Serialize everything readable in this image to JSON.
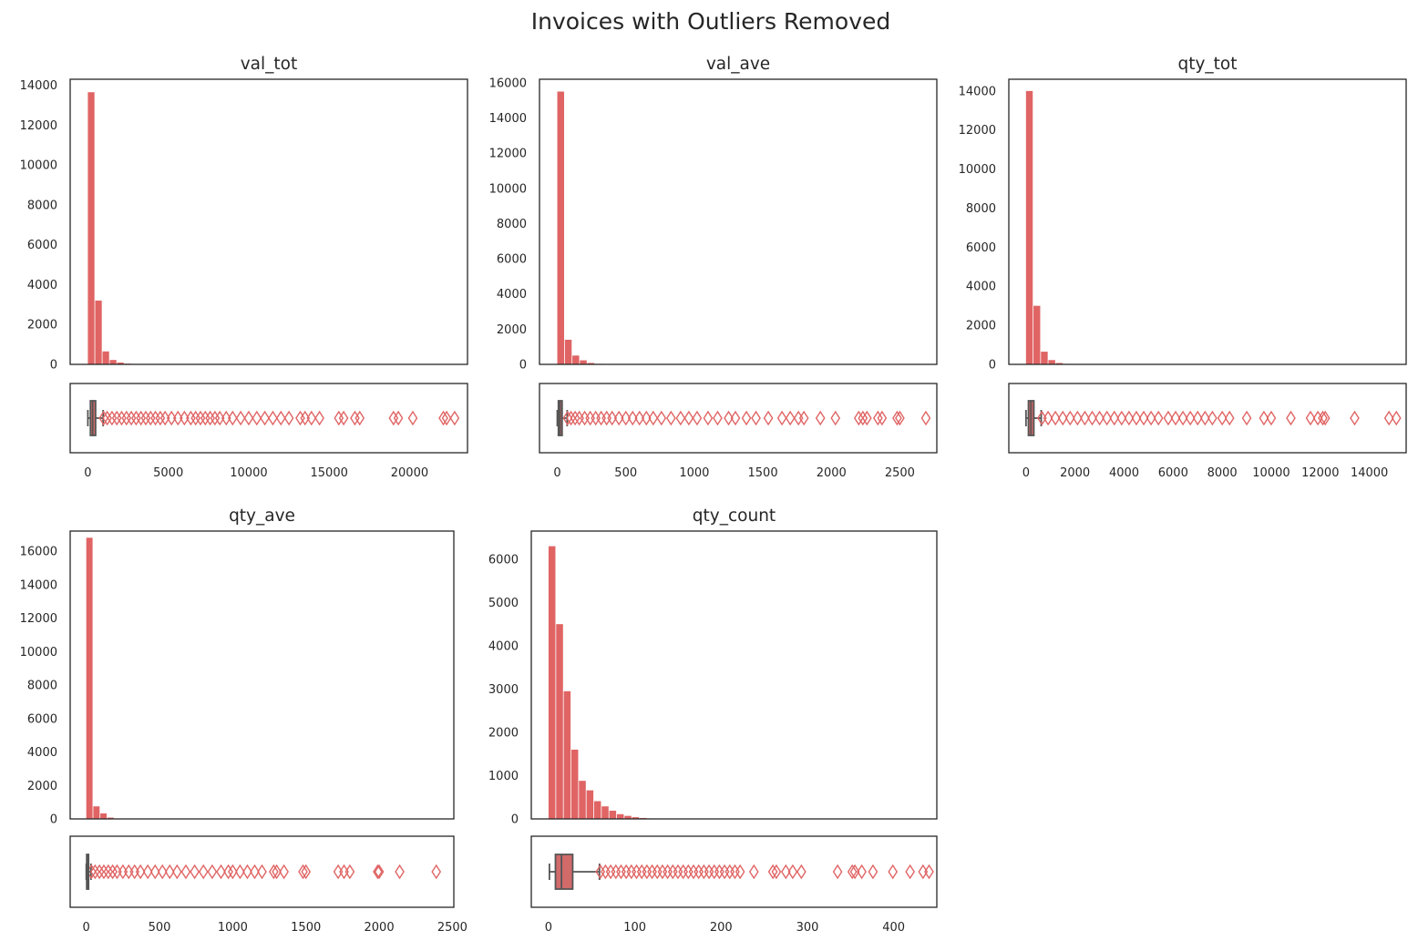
{
  "title": "Invoices with Outliers Removed",
  "colors": {
    "bar": "#e06464",
    "box": "#d26a6a",
    "frame": "#262626",
    "whisker": "#555555"
  },
  "chart_data": [
    {
      "type": "histogram+boxplot",
      "title": "val_tot",
      "xlim": [
        -1100,
        23600
      ],
      "ylim": [
        0,
        14300
      ],
      "xticks": [
        0,
        5000,
        10000,
        15000,
        20000
      ],
      "yticks": [
        0,
        2000,
        4000,
        6000,
        8000,
        10000,
        12000,
        14000
      ],
      "bin_width": 455,
      "bins": [
        {
          "x": 0,
          "count": 13650
        },
        {
          "x": 455,
          "count": 3200
        },
        {
          "x": 910,
          "count": 650
        },
        {
          "x": 1365,
          "count": 220
        },
        {
          "x": 1820,
          "count": 90
        },
        {
          "x": 2275,
          "count": 35
        },
        {
          "x": 2730,
          "count": 15
        }
      ],
      "box": {
        "whisker_low": 0,
        "q1": 160,
        "median": 300,
        "q3": 480,
        "whisker_high": 950
      },
      "outliers": [
        980,
        1200,
        1500,
        1800,
        2100,
        2400,
        2700,
        3000,
        3300,
        3600,
        3900,
        4200,
        4500,
        4800,
        5200,
        5600,
        6000,
        6400,
        6700,
        7000,
        7300,
        7600,
        7900,
        8200,
        8600,
        9000,
        9500,
        10000,
        10500,
        11000,
        11500,
        12000,
        12500,
        13200,
        13500,
        13900,
        14400,
        15600,
        15900,
        16600,
        16900,
        19000,
        19300,
        20200,
        22100,
        22300,
        22800
      ]
    },
    {
      "type": "histogram+boxplot",
      "title": "val_ave",
      "xlim": [
        -130,
        2770
      ],
      "ylim": [
        0,
        16200
      ],
      "xticks": [
        0,
        500,
        1000,
        1500,
        2000,
        2500
      ],
      "yticks": [
        0,
        2000,
        4000,
        6000,
        8000,
        10000,
        12000,
        14000,
        16000
      ],
      "bin_width": 55,
      "bins": [
        {
          "x": 0,
          "count": 15500
        },
        {
          "x": 55,
          "count": 1400
        },
        {
          "x": 110,
          "count": 500
        },
        {
          "x": 165,
          "count": 230
        },
        {
          "x": 220,
          "count": 80
        },
        {
          "x": 275,
          "count": 30
        }
      ],
      "box": {
        "whisker_low": 0,
        "q1": 8,
        "median": 20,
        "q3": 35,
        "whisker_high": 72
      },
      "outliers": [
        75,
        100,
        130,
        160,
        200,
        240,
        280,
        320,
        360,
        400,
        450,
        500,
        550,
        600,
        650,
        700,
        760,
        830,
        900,
        960,
        1020,
        1100,
        1170,
        1250,
        1300,
        1380,
        1450,
        1540,
        1640,
        1700,
        1760,
        1800,
        1920,
        2030,
        2200,
        2230,
        2260,
        2340,
        2370,
        2480,
        2500,
        2690
      ]
    },
    {
      "type": "histogram+boxplot",
      "title": "qty_tot",
      "xlim": [
        -700,
        15500
      ],
      "ylim": [
        0,
        14600
      ],
      "xticks": [
        0,
        2000,
        4000,
        6000,
        8000,
        10000,
        12000,
        14000
      ],
      "yticks": [
        0,
        2000,
        4000,
        6000,
        8000,
        10000,
        12000,
        14000
      ],
      "bin_width": 305,
      "bins": [
        {
          "x": 0,
          "count": 14000
        },
        {
          "x": 305,
          "count": 3000
        },
        {
          "x": 610,
          "count": 650
        },
        {
          "x": 915,
          "count": 220
        },
        {
          "x": 1220,
          "count": 70
        },
        {
          "x": 1525,
          "count": 25
        }
      ],
      "box": {
        "whisker_low": 0,
        "q1": 100,
        "median": 200,
        "q3": 320,
        "whisker_high": 620
      },
      "outliers": [
        650,
        900,
        1200,
        1500,
        1800,
        2100,
        2400,
        2700,
        3000,
        3300,
        3600,
        3900,
        4200,
        4500,
        4800,
        5100,
        5400,
        5800,
        6100,
        6400,
        6700,
        7000,
        7300,
        7600,
        8000,
        8300,
        9000,
        9700,
        10000,
        10800,
        11600,
        11900,
        12100,
        12200,
        13400,
        14800,
        15100
      ]
    },
    {
      "type": "histogram+boxplot",
      "title": "qty_ave",
      "xlim": [
        -110,
        2510
      ],
      "ylim": [
        0,
        17200
      ],
      "xticks": [
        0,
        500,
        1000,
        1500,
        2000,
        2500
      ],
      "yticks": [
        0,
        2000,
        4000,
        6000,
        8000,
        10000,
        12000,
        14000,
        16000
      ],
      "bin_width": 48,
      "bins": [
        {
          "x": 0,
          "count": 16800
        },
        {
          "x": 48,
          "count": 750
        },
        {
          "x": 96,
          "count": 330
        },
        {
          "x": 144,
          "count": 80
        },
        {
          "x": 192,
          "count": 25
        }
      ],
      "box": {
        "whisker_low": 0,
        "q1": 3,
        "median": 7,
        "q3": 14,
        "whisker_high": 32
      },
      "outliers": [
        35,
        60,
        90,
        120,
        150,
        180,
        210,
        250,
        290,
        330,
        370,
        420,
        470,
        520,
        570,
        620,
        680,
        740,
        800,
        860,
        920,
        970,
        1000,
        1050,
        1100,
        1150,
        1200,
        1280,
        1300,
        1350,
        1480,
        1500,
        1720,
        1760,
        1800,
        1990,
        2000,
        2140,
        2390
      ]
    },
    {
      "type": "histogram+boxplot",
      "title": "qty_count",
      "xlim": [
        -20,
        450
      ],
      "ylim": [
        0,
        6650
      ],
      "xticks": [
        0,
        100,
        200,
        300,
        400
      ],
      "yticks": [
        0,
        1000,
        2000,
        3000,
        4000,
        5000,
        6000
      ],
      "bin_width": 8.8,
      "bins": [
        {
          "x": 0,
          "count": 6300
        },
        {
          "x": 8.8,
          "count": 4500
        },
        {
          "x": 17.6,
          "count": 2950
        },
        {
          "x": 26.4,
          "count": 1600
        },
        {
          "x": 35.2,
          "count": 880
        },
        {
          "x": 44,
          "count": 660
        },
        {
          "x": 52.8,
          "count": 410
        },
        {
          "x": 61.6,
          "count": 290
        },
        {
          "x": 70.4,
          "count": 190
        },
        {
          "x": 79.2,
          "count": 110
        },
        {
          "x": 88,
          "count": 70
        },
        {
          "x": 96.8,
          "count": 40
        },
        {
          "x": 105.6,
          "count": 22
        },
        {
          "x": 114.4,
          "count": 12
        }
      ],
      "box": {
        "whisker_low": 1,
        "q1": 8,
        "median": 15,
        "q3": 28,
        "whisker_high": 59
      },
      "outliers": [
        60,
        66,
        72,
        78,
        84,
        90,
        96,
        102,
        108,
        114,
        120,
        126,
        132,
        138,
        144,
        150,
        156,
        162,
        168,
        174,
        180,
        186,
        192,
        198,
        204,
        210,
        216,
        222,
        238,
        260,
        264,
        275,
        283,
        293,
        335,
        352,
        355,
        363,
        376,
        399,
        419,
        434,
        441
      ]
    }
  ]
}
